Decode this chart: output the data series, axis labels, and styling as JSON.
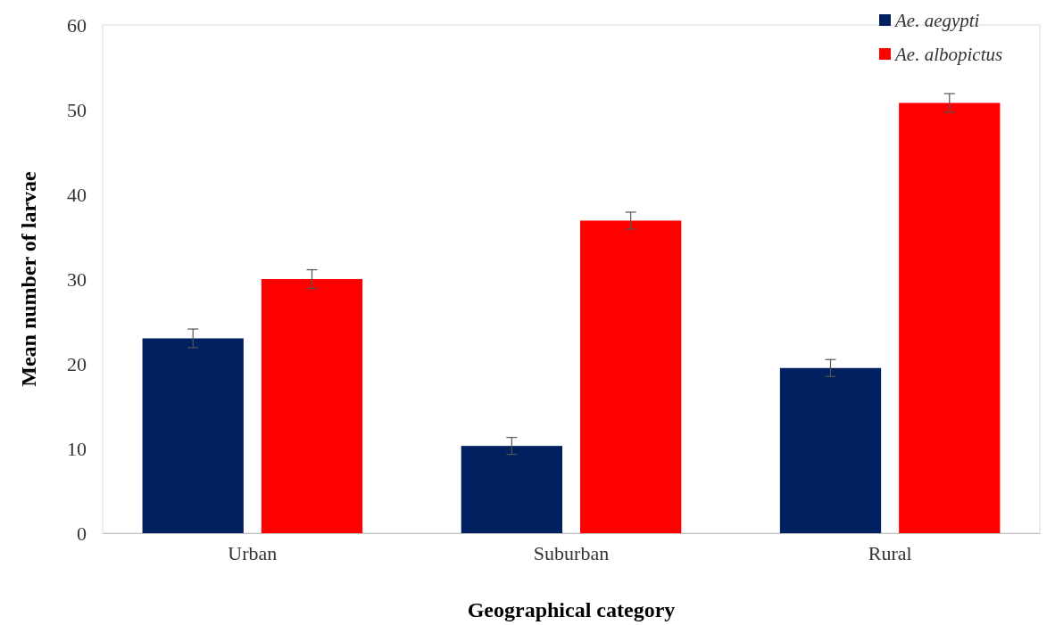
{
  "chart_data": {
    "type": "bar",
    "xlabel": "Geographical  category",
    "ylabel": "Mean  number  of larvae",
    "categories": [
      "Urban",
      "Suburban",
      "Rural"
    ],
    "series": [
      {
        "name": "Ae. aegypti",
        "color": "#002060",
        "values": [
          23,
          10.3,
          19.5
        ],
        "errors": [
          1.1,
          1,
          1
        ]
      },
      {
        "name": "Ae. albopictus",
        "color": "#ff0000",
        "values": [
          30,
          36.9,
          50.8
        ],
        "errors": [
          1.1,
          1,
          1.1
        ]
      }
    ],
    "ylim": [
      0,
      60
    ],
    "yticks": [
      0,
      10,
      20,
      30,
      40,
      50,
      60
    ],
    "grid": false,
    "legend": "top right"
  }
}
